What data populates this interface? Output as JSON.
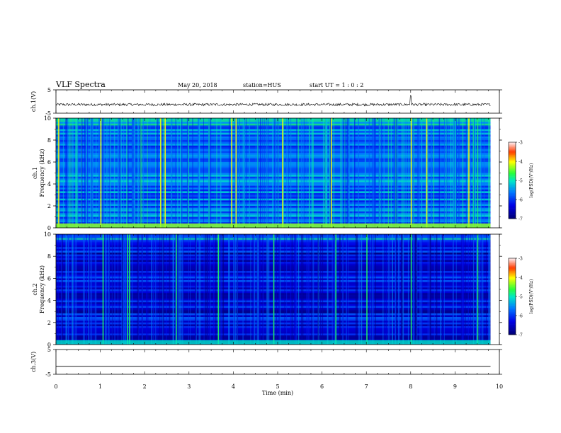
{
  "header": {
    "title": "VLF Spectra",
    "date": "May 20, 2018",
    "station": "station=HUS",
    "start": "start  UT =   1 : 0  : 2"
  },
  "chart_data": [
    {
      "type": "line",
      "ylabel": "ch.1(V)",
      "ylim": [
        -5,
        5
      ],
      "ytick_labels": [
        "5",
        "-5"
      ],
      "trace_level": -1.3
    },
    {
      "type": "heatmap",
      "ylabel_top": "ch.1",
      "ylabel": "Frequency (kHz)",
      "ylim": [
        0,
        10
      ],
      "ytick_labels": [
        "0",
        "2",
        "4",
        "6",
        "8",
        "10"
      ],
      "colorbar": {
        "label": "log(PSD)(V²/Hz)",
        "ticks": [
          "-3",
          "-4",
          "-5",
          "-6",
          "-7"
        ],
        "range": [
          -7,
          -3
        ]
      },
      "background_level": -5.6,
      "bright_lines_min": [
        0.05,
        1.0,
        2.35,
        2.45,
        3.95,
        4.05,
        5.1,
        6.2,
        8.0,
        8.35,
        9.3
      ]
    },
    {
      "type": "heatmap",
      "ylabel_top": "ch.2",
      "ylabel": "Frequency (kHz)",
      "ylim": [
        0,
        10
      ],
      "ytick_labels": [
        "0",
        "2",
        "4",
        "6",
        "8",
        "10"
      ],
      "colorbar": {
        "label": "log(PSD)(V²/Hz)",
        "ticks": [
          "-3",
          "-4",
          "-5",
          "-6",
          "-7"
        ],
        "range": [
          -7,
          -3
        ]
      },
      "background_level": -6.3,
      "bright_lines_min": [
        1.05,
        1.6,
        1.65,
        2.7,
        3.65,
        4.9,
        6.3,
        7.0,
        8.0,
        9.5
      ]
    },
    {
      "type": "line",
      "ylabel": "ch.3(V)",
      "ylim": [
        -5,
        5
      ],
      "ytick_labels": [
        "5",
        "-5"
      ],
      "trace_level": -1.8
    }
  ],
  "x_axis": {
    "label": "Time  (min)",
    "ticks": [
      "0",
      "1",
      "2",
      "3",
      "4",
      "5",
      "6",
      "7",
      "8",
      "9",
      "10"
    ],
    "range": [
      0,
      10
    ],
    "data_end": 9.8
  }
}
